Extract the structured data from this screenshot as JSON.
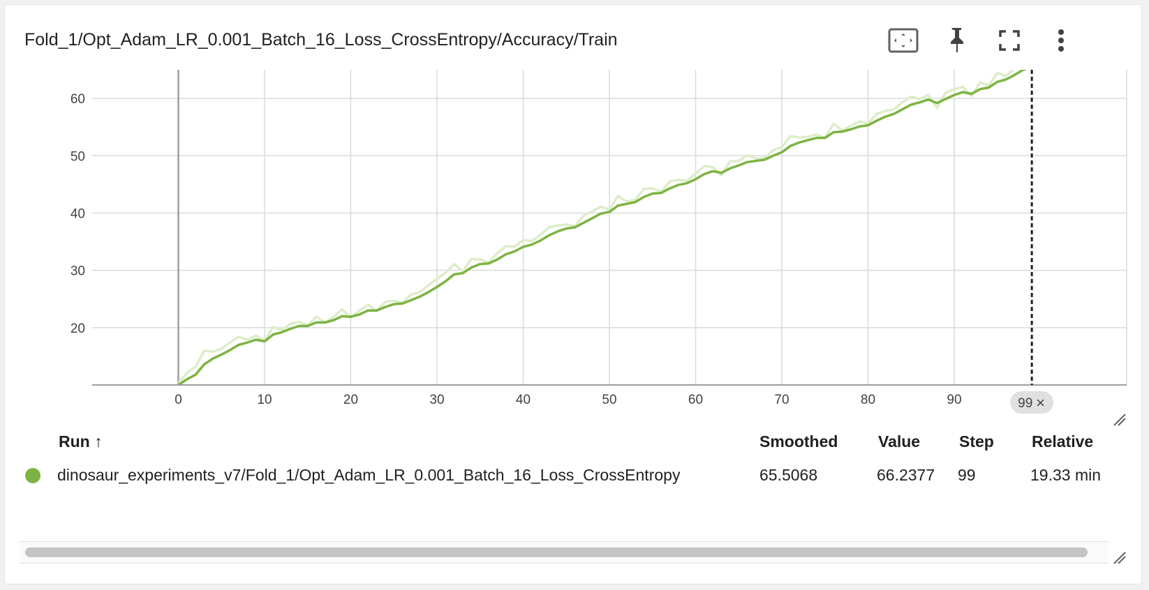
{
  "card": {
    "title": "Fold_1/Opt_Adam_LR_0.001_Batch_16_Loss_CrossEntropy/Accuracy/Train"
  },
  "toolbar": {
    "icons": [
      "fit-domain-icon",
      "pin-icon",
      "fullscreen-icon",
      "more-vert-icon"
    ]
  },
  "chart_data": {
    "type": "line",
    "x_ticks": [
      "0",
      "10",
      "20",
      "30",
      "40",
      "50",
      "60",
      "70",
      "80",
      "90"
    ],
    "y_ticks": [
      "20",
      "30",
      "40",
      "50",
      "60"
    ],
    "xlim": [
      -10,
      110
    ],
    "ylim": [
      10,
      65
    ],
    "grid": true,
    "step_marker": {
      "step": 99,
      "label": "99",
      "close_symbol": "×"
    },
    "series": [
      {
        "smoothed_color": "#7cb342",
        "raw_color": "#dcedc8",
        "x": [
          0,
          1,
          2,
          3,
          4,
          5,
          6,
          7,
          8,
          9,
          10,
          11,
          12,
          13,
          14,
          15,
          16,
          17,
          18,
          19,
          20,
          21,
          22,
          23,
          24,
          25,
          26,
          27,
          28,
          29,
          30,
          31,
          32,
          33,
          34,
          35,
          36,
          37,
          38,
          39,
          40,
          41,
          42,
          43,
          44,
          45,
          46,
          47,
          48,
          49,
          50,
          51,
          52,
          53,
          54,
          55,
          56,
          57,
          58,
          59,
          60,
          61,
          62,
          63,
          64,
          65,
          66,
          67,
          68,
          69,
          70,
          71,
          72,
          73,
          74,
          75,
          76,
          77,
          78,
          79,
          80,
          81,
          82,
          83,
          84,
          85,
          86,
          87,
          88,
          89,
          90,
          91,
          92,
          93,
          94,
          95,
          96,
          97,
          98,
          99
        ],
        "smoothed": [
          10.0,
          11.0,
          11.8,
          13.6,
          14.6,
          15.3,
          16.1,
          17.0,
          17.4,
          17.9,
          17.6,
          18.8,
          19.2,
          19.8,
          20.3,
          20.3,
          20.9,
          20.9,
          21.3,
          22.0,
          21.9,
          22.3,
          23.0,
          23.0,
          23.6,
          24.1,
          24.2,
          24.8,
          25.4,
          26.2,
          27.1,
          28.1,
          29.3,
          29.5,
          30.5,
          31.1,
          31.2,
          31.9,
          32.8,
          33.3,
          34.1,
          34.5,
          35.2,
          36.1,
          36.8,
          37.3,
          37.5,
          38.3,
          39.1,
          39.9,
          40.2,
          41.3,
          41.6,
          41.9,
          42.8,
          43.4,
          43.5,
          44.3,
          44.9,
          45.2,
          45.9,
          46.8,
          47.3,
          47.0,
          47.8,
          48.3,
          48.9,
          49.1,
          49.3,
          50.0,
          50.6,
          51.7,
          52.3,
          52.7,
          53.1,
          53.1,
          54.1,
          54.2,
          54.6,
          55.1,
          55.3,
          56.1,
          56.8,
          57.3,
          58.1,
          58.9,
          59.3,
          59.8,
          59.2,
          59.9,
          60.6,
          61.1,
          60.8,
          61.6,
          61.9,
          62.9,
          63.3,
          64.1,
          65.0,
          65.5068
        ],
        "raw": [
          10.3,
          12.1,
          13.2,
          16.0,
          15.8,
          16.3,
          17.4,
          18.4,
          17.9,
          18.6,
          17.7,
          20.1,
          19.6,
          20.7,
          21.0,
          20.4,
          21.9,
          20.9,
          21.9,
          23.2,
          21.7,
          23.0,
          24.0,
          22.9,
          24.5,
          24.7,
          24.4,
          25.8,
          26.2,
          27.4,
          28.5,
          29.6,
          31.1,
          29.8,
          32.0,
          31.9,
          31.4,
          33.0,
          34.2,
          34.1,
          35.3,
          35.1,
          36.2,
          37.5,
          37.8,
          38.0,
          37.7,
          39.5,
          40.3,
          41.1,
          40.6,
          43.0,
          42.0,
          42.3,
          44.2,
          44.3,
          43.7,
          45.5,
          45.8,
          45.6,
          46.9,
          48.2,
          48.0,
          46.6,
          49.0,
          49.1,
          50.1,
          49.5,
          49.6,
          51.0,
          51.5,
          53.4,
          53.2,
          53.3,
          53.7,
          53.1,
          55.6,
          54.4,
          55.2,
          56.0,
          55.6,
          57.3,
          57.8,
          58.1,
          59.3,
          60.3,
          59.9,
          60.6,
          58.3,
          61.0,
          61.6,
          62.0,
          60.4,
          62.8,
          62.3,
          64.4,
          63.9,
          65.3,
          66.0,
          66.2377
        ]
      }
    ]
  },
  "table": {
    "headers": {
      "run": "Run",
      "sort_symbol": "↑",
      "smoothed": "Smoothed",
      "value": "Value",
      "step": "Step",
      "relative": "Relative"
    },
    "rows": [
      {
        "color": "#7cb342",
        "run": "dinosaur_experiments_v7/Fold_1/Opt_Adam_LR_0.001_Batch_16_Loss_CrossEntropy",
        "smoothed": "65.5068",
        "value": "66.2377",
        "step": "99",
        "relative": "19.33 min"
      }
    ]
  }
}
